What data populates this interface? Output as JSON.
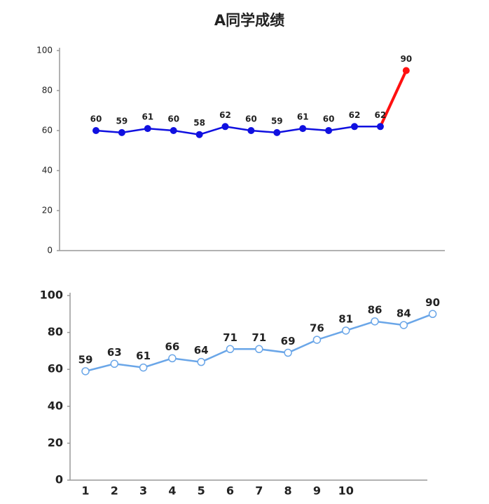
{
  "chart_data": [
    {
      "type": "line",
      "title": "A同学成绩",
      "series": [
        {
          "values": [
            60,
            59,
            61,
            60,
            58,
            62,
            60,
            59,
            61,
            60,
            62,
            62,
            90
          ],
          "color": "#1010e0",
          "last_segment_color": "#ff1010"
        }
      ],
      "ylim": [
        0,
        100
      ],
      "yticks": [
        0,
        20,
        40,
        60,
        80,
        100
      ]
    },
    {
      "type": "line",
      "categories": [
        1,
        2,
        3,
        4,
        5,
        6,
        7,
        8,
        9,
        10,
        null,
        null,
        null
      ],
      "series": [
        {
          "values": [
            59,
            63,
            61,
            66,
            64,
            71,
            71,
            69,
            76,
            81,
            86,
            84,
            90
          ],
          "color": "#6aa6e8"
        }
      ],
      "ylim": [
        0,
        100
      ],
      "yticks": [
        0,
        20,
        40,
        60,
        80,
        100
      ]
    }
  ]
}
